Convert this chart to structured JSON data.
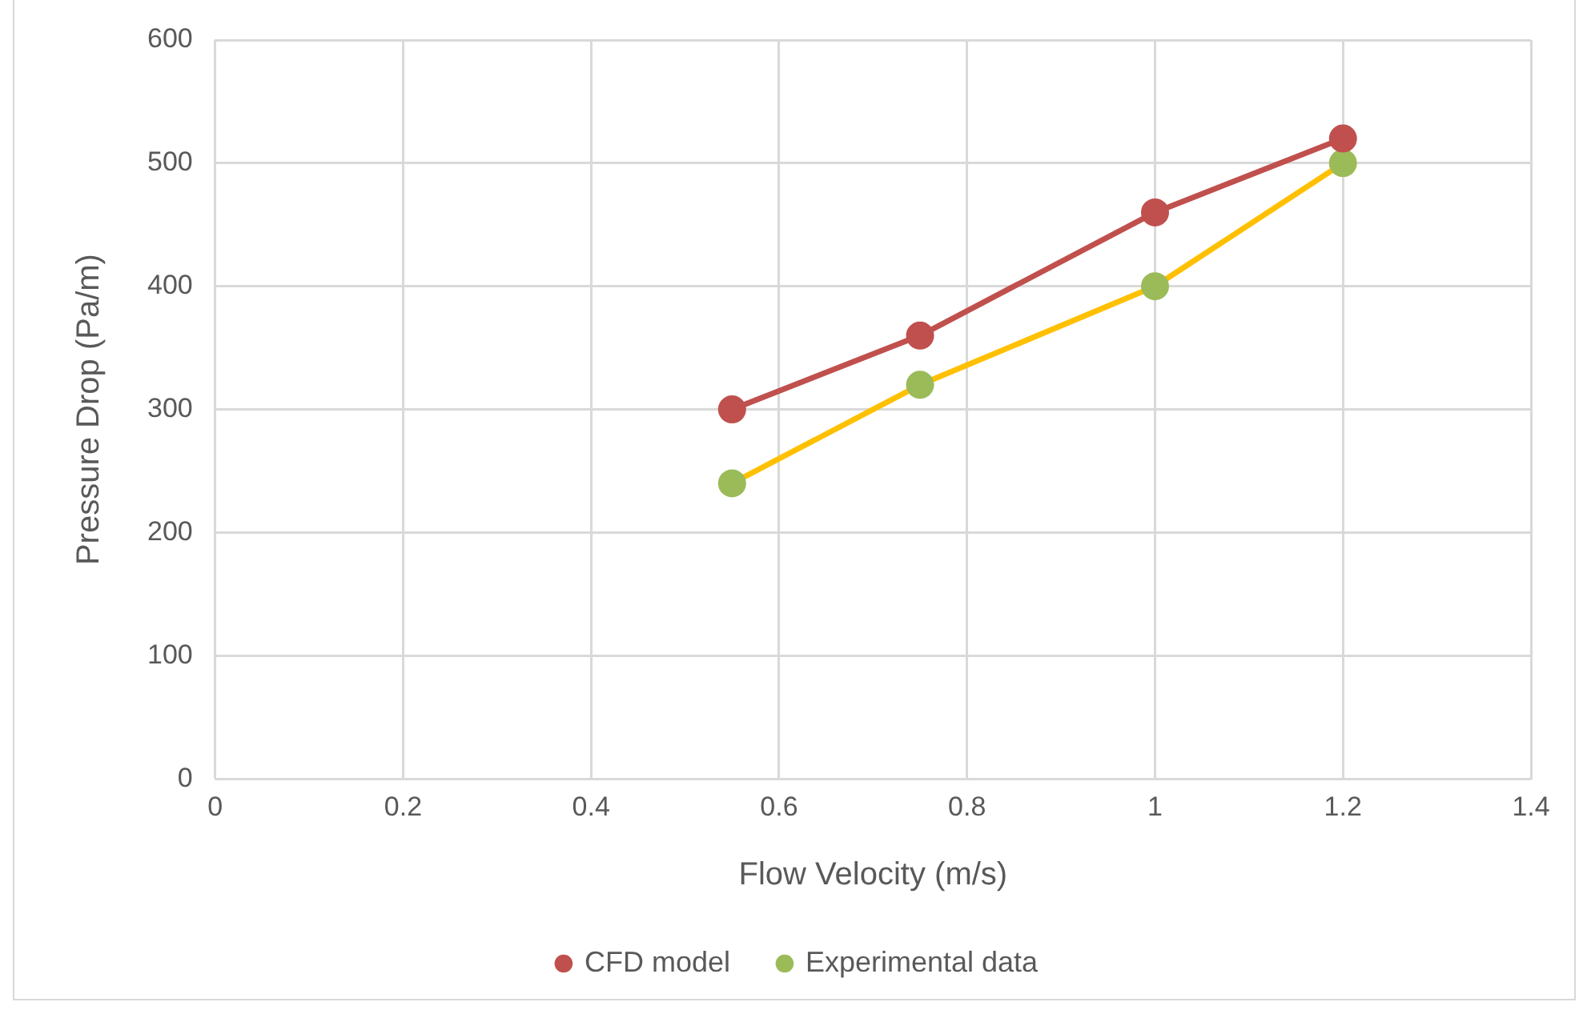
{
  "chart_data": {
    "type": "line",
    "xlabel": "Flow Velocity (m/s)",
    "ylabel": "Pressure Drop (Pa/m)",
    "series": [
      {
        "name": "CFD model",
        "color": "#c0504d",
        "colors": [
          "#c0504d",
          "#c0504d",
          "#c0504d",
          "#c0504d"
        ],
        "x": [
          0.55,
          0.75,
          1,
          1.2
        ],
        "values": [
          300,
          360,
          460,
          520
        ]
      },
      {
        "name": "Experimental data",
        "color": "#ffc000",
        "colors": [
          "#9bbb59",
          "#9bbb59",
          "#9bbb59",
          "#9bbb59"
        ],
        "x": [
          0.55,
          0.75,
          1,
          1.2
        ],
        "values": [
          240,
          320,
          400,
          500
        ]
      }
    ],
    "xlim": [
      0,
      1.4
    ],
    "xticks": [
      0,
      0.2,
      0.4,
      0.6,
      0.8,
      1,
      1.2,
      1.4
    ],
    "ylim": [
      0,
      600
    ],
    "yticks": [
      0,
      100,
      200,
      300,
      400,
      500,
      600
    ],
    "grid": true,
    "legend": "bottom",
    "marker": "circle",
    "line_style": "solid"
  }
}
